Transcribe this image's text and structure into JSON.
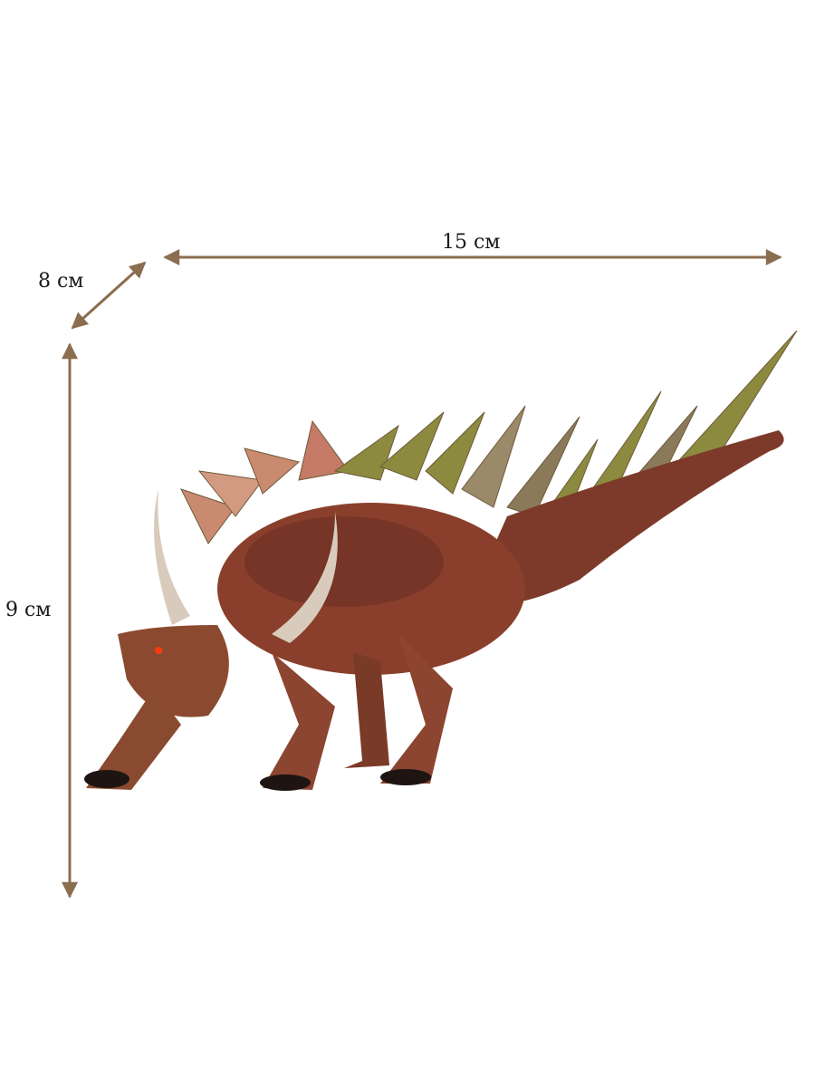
{
  "dimensions": {
    "length": "15 см",
    "width": "8 см",
    "height": "9 см"
  },
  "colors": {
    "arrow": "#8b6d4f",
    "body": "#8a3f2c",
    "body_dark": "#4a2a22",
    "spikes": "#8c8a3e",
    "horn": "#d8cbbb"
  },
  "product": {
    "image": "dinosaur-figure-kentrosaurus"
  }
}
